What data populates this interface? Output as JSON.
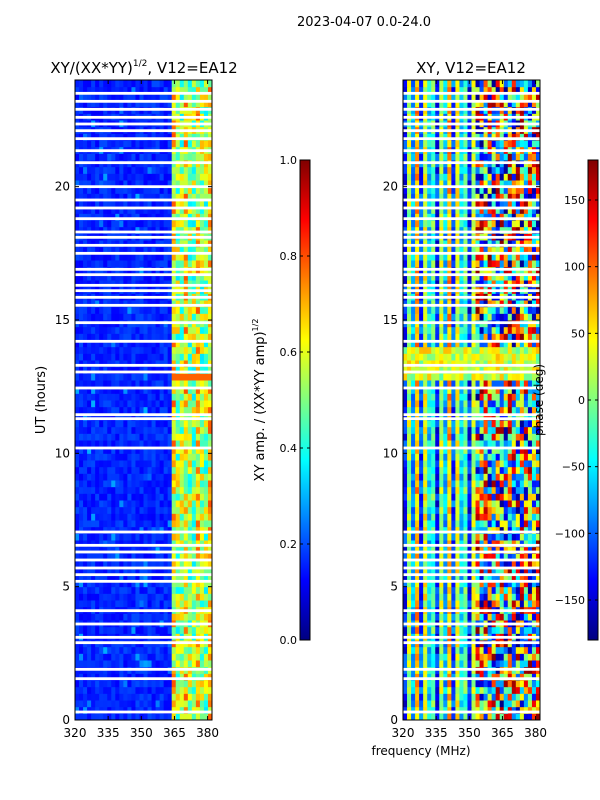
{
  "figure": {
    "suptitle": "2023-04-07 0.0-24.0",
    "ylabel": "UT (hours)",
    "xlabel": "frequency (MHz)"
  },
  "chart_data": [
    {
      "type": "heatmap",
      "name": "left",
      "title_main": "XY/(XX*YY)",
      "title_sup": "1/2",
      "title_tail": ", V12=EA12",
      "xlim": [
        320,
        382
      ],
      "ylim": [
        0,
        24
      ],
      "xticks": [
        320,
        335,
        350,
        365,
        380
      ],
      "yticks": [
        0,
        5,
        10,
        15,
        20
      ],
      "colorbar": {
        "label_main": "XY amp. / (XX*YY amp)",
        "label_sup": "1/2",
        "range": [
          0.0,
          1.0
        ],
        "ticks": [
          "0.0",
          "0.2",
          "0.4",
          "0.6",
          "0.8",
          "1.0"
        ],
        "tick_values": [
          0.0,
          0.2,
          0.4,
          0.6,
          0.8,
          1.0
        ],
        "colors": [
          "#000080",
          "#0000ff",
          "#0080ff",
          "#00ffff",
          "#80ff80",
          "#ffff00",
          "#ff8000",
          "#ff0000",
          "#800000"
        ]
      },
      "gaps_hours": [
        0.3,
        1.55,
        1.9,
        2.9,
        3.1,
        3.6,
        4.1,
        5.2,
        5.45,
        5.7,
        6.0,
        6.3,
        6.55,
        7.05,
        10.2,
        11.3,
        11.45,
        12.45,
        13.05,
        13.3,
        14.2,
        14.9,
        15.55,
        15.85,
        16.1,
        16.3,
        16.7,
        16.9,
        17.5,
        17.8,
        18.1,
        18.3,
        18.8,
        19.2,
        19.5,
        20.0,
        20.9,
        21.35,
        21.8,
        22.1,
        22.35,
        22.6,
        22.9,
        23.2,
        23.5
      ]
    },
    {
      "type": "heatmap",
      "name": "right",
      "title": "XY, V12=EA12",
      "xlim": [
        320,
        382
      ],
      "ylim": [
        0,
        24
      ],
      "xticks": [
        320,
        335,
        350,
        365,
        380
      ],
      "yticks": [
        0,
        5,
        10,
        15,
        20
      ],
      "colorbar": {
        "label": "phase (deg)",
        "range": [
          -180,
          180
        ],
        "ticks": [
          "150",
          "100",
          "50",
          "0",
          "−50",
          "−100",
          "−150"
        ],
        "tick_values": [
          150,
          100,
          50,
          0,
          -50,
          -100,
          -150
        ],
        "colors": [
          "#000080",
          "#0000ff",
          "#0080ff",
          "#00ffff",
          "#80ff80",
          "#ffff00",
          "#ff8000",
          "#ff0000",
          "#800000"
        ]
      },
      "gaps_hours": [
        0.3,
        1.55,
        1.9,
        2.9,
        3.1,
        3.6,
        4.1,
        5.2,
        5.45,
        5.7,
        6.0,
        6.3,
        6.55,
        7.05,
        10.2,
        11.3,
        11.45,
        12.45,
        13.05,
        13.3,
        14.2,
        14.9,
        15.55,
        15.85,
        16.1,
        16.3,
        16.7,
        16.9,
        17.5,
        17.8,
        18.1,
        18.3,
        18.8,
        19.2,
        19.5,
        20.0,
        20.9,
        21.35,
        21.8,
        22.1,
        22.35,
        22.6,
        22.9,
        23.2,
        23.5
      ]
    }
  ]
}
